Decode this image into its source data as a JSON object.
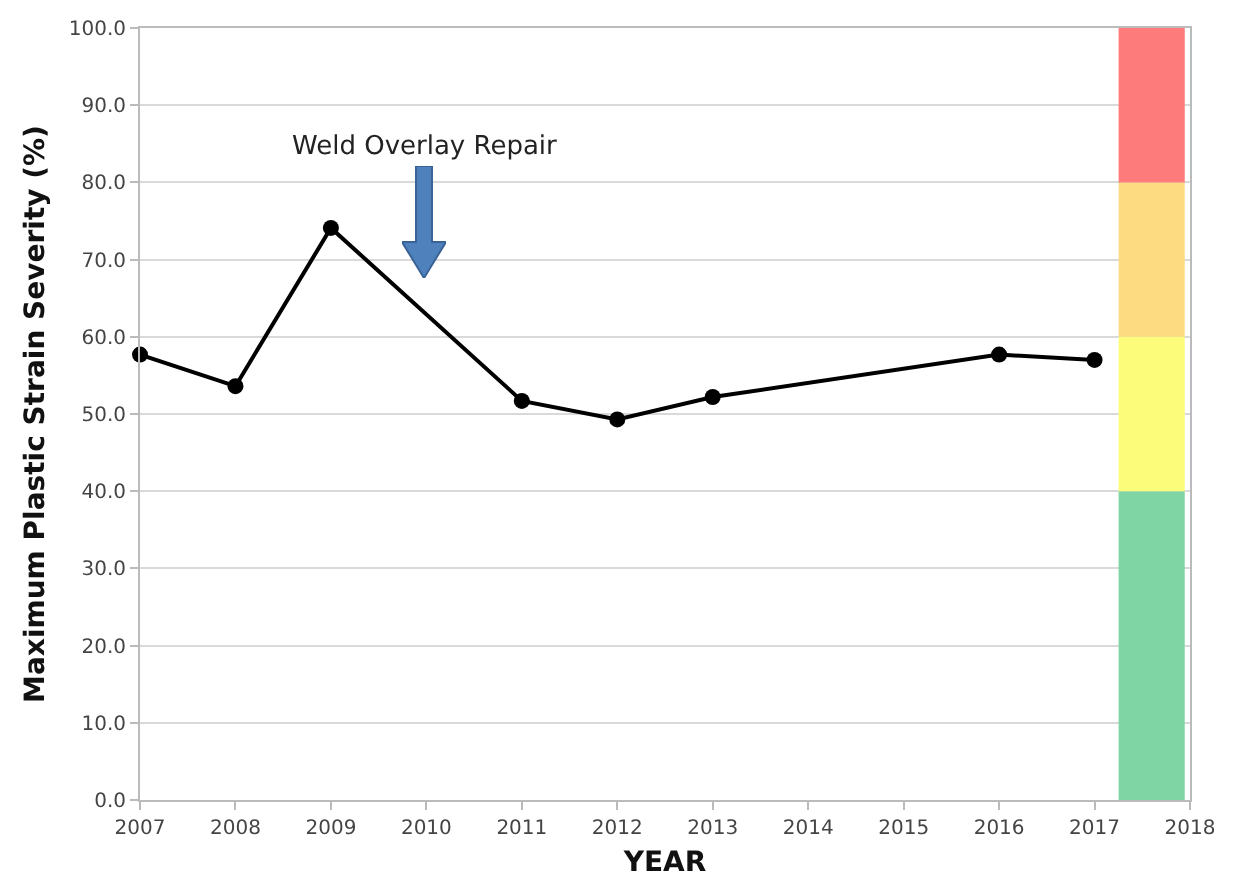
{
  "chart_data": {
    "type": "line",
    "xlabel": "YEAR",
    "ylabel": "Maximum Plastic Strain Severity (%)",
    "x": [
      2007,
      2008,
      2009,
      2011,
      2012,
      2013,
      2016,
      2017
    ],
    "series": [
      {
        "color": "#000000",
        "values": [
          57.7,
          53.6,
          74.1,
          51.7,
          49.3,
          52.2,
          57.7,
          57.0
        ]
      }
    ],
    "xlim": [
      2007,
      2018
    ],
    "xticks": [
      2007,
      2008,
      2009,
      2010,
      2011,
      2012,
      2013,
      2014,
      2015,
      2016,
      2017,
      2018
    ],
    "ylim": [
      0,
      100
    ],
    "yticks": [
      {
        "value": 0,
        "label": "0.0"
      },
      {
        "value": 10,
        "label": "10.0"
      },
      {
        "value": 20,
        "label": "20.0"
      },
      {
        "value": 30,
        "label": "30.0"
      },
      {
        "value": 40,
        "label": "40.0"
      },
      {
        "value": 50,
        "label": "50.0"
      },
      {
        "value": 60,
        "label": "60.0"
      },
      {
        "value": 70,
        "label": "70.0"
      },
      {
        "value": 80,
        "label": "80.0"
      },
      {
        "value": 90,
        "label": "90.0"
      },
      {
        "value": 100,
        "label": "100.0"
      }
    ],
    "bands": [
      {
        "axis": "y",
        "from": 0,
        "to": 40,
        "color": "#7fd6a4"
      },
      {
        "axis": "y",
        "from": 40,
        "to": 60,
        "color": "#fcfc7a"
      },
      {
        "axis": "y",
        "from": 60,
        "to": 80,
        "color": "#fddb80"
      },
      {
        "axis": "y",
        "from": 80,
        "to": 100,
        "color": "#fe7b7b"
      }
    ],
    "annotations": [
      "Weld Overlay Repair"
    ],
    "grid": "y",
    "marker": "circle",
    "line_style": "solid"
  }
}
